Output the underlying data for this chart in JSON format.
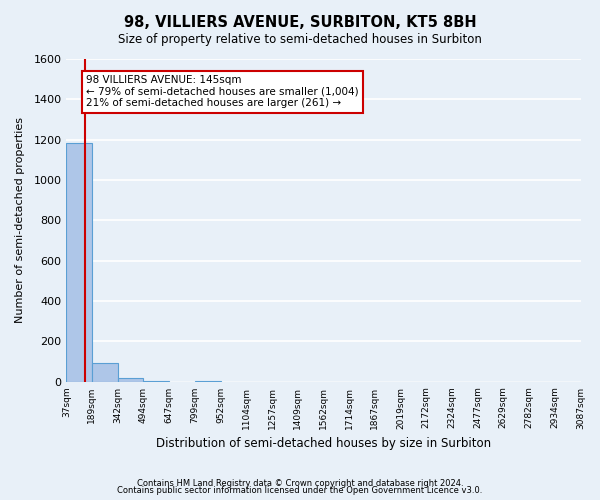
{
  "title": "98, VILLIERS AVENUE, SURBITON, KT5 8BH",
  "subtitle": "Size of property relative to semi-detached houses in Surbiton",
  "xlabel": "Distribution of semi-detached houses by size in Surbiton",
  "ylabel": "Number of semi-detached properties",
  "bin_labels": [
    "37sqm",
    "189sqm",
    "342sqm",
    "494sqm",
    "647sqm",
    "799sqm",
    "952sqm",
    "1104sqm",
    "1257sqm",
    "1409sqm",
    "1562sqm",
    "1714sqm",
    "1867sqm",
    "2019sqm",
    "2172sqm",
    "2324sqm",
    "2477sqm",
    "2629sqm",
    "2782sqm",
    "2934sqm",
    "3087sqm"
  ],
  "bin_edges": [
    37,
    189,
    342,
    494,
    647,
    799,
    952,
    1104,
    1257,
    1409,
    1562,
    1714,
    1867,
    2019,
    2172,
    2324,
    2477,
    2629,
    2782,
    2934,
    3087
  ],
  "bar_heights": [
    1185,
    93,
    18,
    3,
    0,
    1,
    0,
    0,
    0,
    0,
    0,
    0,
    0,
    0,
    0,
    0,
    0,
    0,
    0,
    0
  ],
  "bar_color": "#aec6e8",
  "bar_edge_color": "#5a9fd4",
  "background_color": "#e8f0f8",
  "grid_color": "#ffffff",
  "property_value": 145,
  "property_line_color": "#cc0000",
  "annotation_text": "98 VILLIERS AVENUE: 145sqm\n← 79% of semi-detached houses are smaller (1,004)\n21% of semi-detached houses are larger (261) →",
  "annotation_box_color": "#ffffff",
  "annotation_box_edge_color": "#cc0000",
  "ylim": [
    0,
    1600
  ],
  "yticks": [
    0,
    200,
    400,
    600,
    800,
    1000,
    1200,
    1400,
    1600
  ],
  "footnote1": "Contains HM Land Registry data © Crown copyright and database right 2024.",
  "footnote2": "Contains public sector information licensed under the Open Government Licence v3.0."
}
